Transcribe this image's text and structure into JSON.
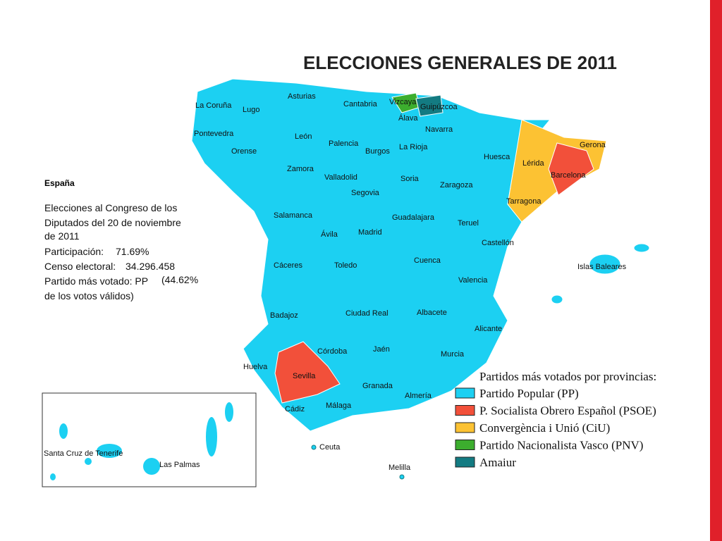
{
  "title": "ELECCIONES GENERALES DE 2011",
  "info": {
    "country": "España",
    "lines": [
      "Elecciones al Congreso de los",
      "Diputados del 20 de noviembre",
      "de 2011"
    ],
    "participation_label": "Participación:",
    "participation": "71.69%",
    "census_label": "Censo electoral:",
    "census": "34.296.458",
    "winner_label": "Partido más votado: PP",
    "winner_share": "(44.62%",
    "winner_tail": "de los votos válidos)"
  },
  "legend": {
    "title": "Partidos más votados por provincias:",
    "items": [
      {
        "label": "Partido Popular (PP)",
        "color": "#1cd0f2"
      },
      {
        "label": "P. Socialista Obrero Español (PSOE)",
        "color": "#f2503a"
      },
      {
        "label": "Convergència i Unió (CiU)",
        "color": "#fcc233"
      },
      {
        "label": "Partido Nacionalista Vasco (PNV)",
        "color": "#3cae2e"
      },
      {
        "label": "Amaiur",
        "color": "#137b82"
      }
    ]
  },
  "provinces": [
    "La Coruña",
    "Lugo",
    "Asturias",
    "Cantabria",
    "Vizcaya",
    "Guipúzcoa",
    "Álava",
    "Navarra",
    "Pontevedra",
    "Orense",
    "León",
    "Palencia",
    "Burgos",
    "La Rioja",
    "Huesca",
    "Lérida",
    "Gerona",
    "Barcelona",
    "Tarragona",
    "Zamora",
    "Valladolid",
    "Soria",
    "Zaragoza",
    "Segovia",
    "Salamanca",
    "Ávila",
    "Madrid",
    "Guadalajara",
    "Teruel",
    "Castellón",
    "Cáceres",
    "Toledo",
    "Cuenca",
    "Valencia",
    "Badajoz",
    "Ciudad Real",
    "Albacete",
    "Alicante",
    "Córdoba",
    "Jaén",
    "Murcia",
    "Huelva",
    "Sevilla",
    "Granada",
    "Almería",
    "Cádiz",
    "Málaga",
    "Ceuta",
    "Melilla",
    "Islas Baleares",
    "Santa Cruz de Tenerife",
    "Las Palmas"
  ]
}
